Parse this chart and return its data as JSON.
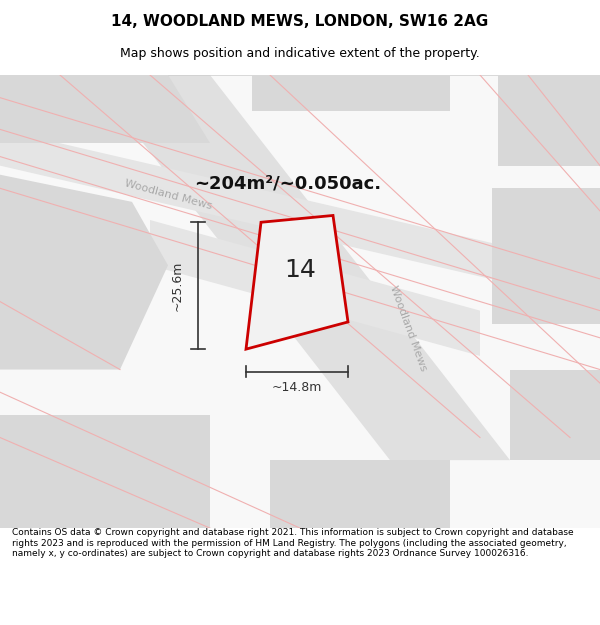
{
  "title": "14, WOODLAND MEWS, LONDON, SW16 2AG",
  "subtitle": "Map shows position and indicative extent of the property.",
  "footer": "Contains OS data © Crown copyright and database right 2021. This information is subject to Crown copyright and database rights 2023 and is reproduced with the permission of HM Land Registry. The polygons (including the associated geometry, namely x, y co-ordinates) are subject to Crown copyright and database rights 2023 Ordnance Survey 100026316.",
  "area_text": "~204m²/~0.050ac.",
  "label_number": "14",
  "dim_width": "~14.8m",
  "dim_height": "~25.6m",
  "street_label_1": "Woodland Mews",
  "street_label_2": "Woodland Mews",
  "bg_color": "#ffffff",
  "map_bg": "#f5f5f5",
  "building_fill": "#e8e8e8",
  "road_fill": "#dcdcdc",
  "property_fill": "#f0f0f0",
  "property_edge": "#cc0000",
  "cadastral_color": "#f0b0b0",
  "road_label_color": "#999999",
  "dim_color": "#333333",
  "title_color": "#000000",
  "map_xlim": [
    0,
    10
  ],
  "map_ylim": [
    0,
    10
  ]
}
